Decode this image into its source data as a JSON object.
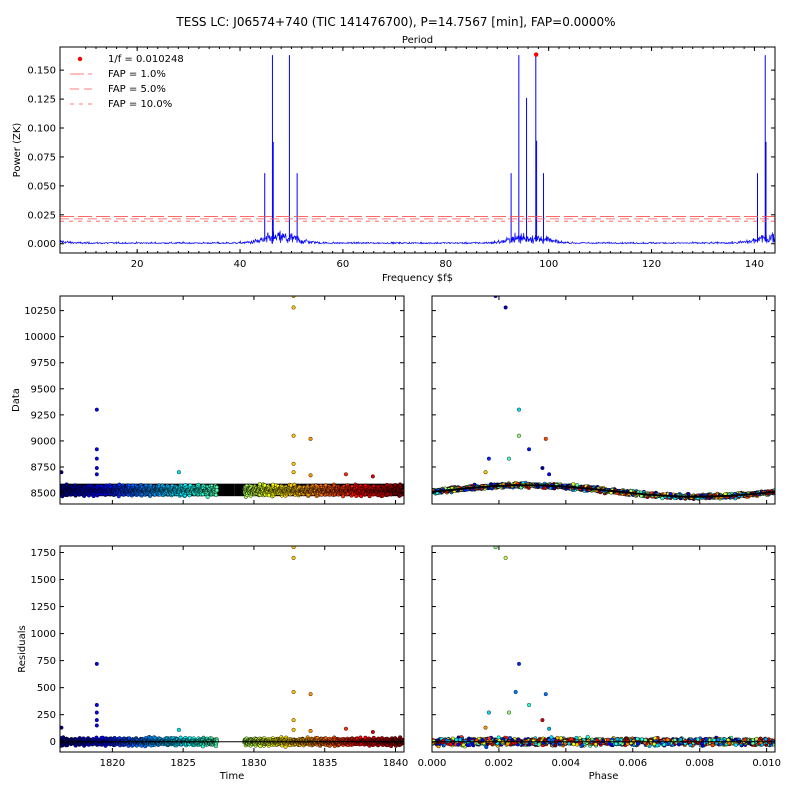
{
  "figure": {
    "title": "TESS LC: J06574+740 (TIC 141476700), P=14.7567 [min], FAP=0.0000%"
  },
  "chart_data": [
    {
      "id": "periodogram",
      "type": "line",
      "top_axis_label": "Period",
      "xlabel": "Frequency $f$",
      "ylabel": "Power (ZK)",
      "xlim": [
        5,
        144
      ],
      "ylim": [
        -0.008,
        0.17
      ],
      "xticks": [
        20,
        40,
        60,
        80,
        100,
        120,
        140
      ],
      "yticks": [
        0.0,
        0.025,
        0.05,
        0.075,
        0.1,
        0.125,
        0.15
      ],
      "line_color": "#0000ff",
      "peaks": [
        {
          "f": 44.8,
          "p": 0.061
        },
        {
          "f": 46.3,
          "p": 0.163
        },
        {
          "f": 46.45,
          "p": 0.088
        },
        {
          "f": 49.6,
          "p": 0.163
        },
        {
          "f": 51.1,
          "p": 0.061
        },
        {
          "f": 92.7,
          "p": 0.061
        },
        {
          "f": 94.2,
          "p": 0.163
        },
        {
          "f": 95.7,
          "p": 0.126
        },
        {
          "f": 97.5,
          "p": 0.163
        },
        {
          "f": 97.65,
          "p": 0.089
        },
        {
          "f": 99.0,
          "p": 0.061
        },
        {
          "f": 140.6,
          "p": 0.061
        },
        {
          "f": 142.1,
          "p": 0.163
        },
        {
          "f": 142.25,
          "p": 0.088
        }
      ],
      "best": {
        "f": 97.57,
        "p": 0.1635,
        "label": "1/f = 0.010248",
        "color": "#ff0000"
      },
      "fap_levels": [
        {
          "label": "FAP = 1.0%",
          "value": 0.0235,
          "dash": "14,4"
        },
        {
          "label": "FAP = 5.0%",
          "value": 0.0215,
          "dash": "9,5"
        },
        {
          "label": "FAP = 10.0%",
          "value": 0.0195,
          "dash": "4,5"
        }
      ],
      "fap_color": "#ff5050",
      "legend_position": "top-left"
    },
    {
      "id": "data-time",
      "type": "scatter",
      "ylabel": "Data",
      "xlim": [
        1816.3,
        1840.6
      ],
      "ylim": [
        8395,
        10390
      ],
      "xticks": [
        1820,
        1825,
        1830,
        1835,
        1840
      ],
      "yticks": [
        8500,
        8750,
        9000,
        9250,
        9500,
        9750,
        10000,
        10250
      ],
      "model_band": [
        8470,
        8590
      ],
      "gap": [
        1827.4,
        1829.3
      ],
      "outliers": [
        {
          "x": 1816.4,
          "y": 8700
        },
        {
          "x": 1818.9,
          "y": 9300
        },
        {
          "x": 1818.9,
          "y": 8920
        },
        {
          "x": 1818.9,
          "y": 8830
        },
        {
          "x": 1818.9,
          "y": 8740
        },
        {
          "x": 1818.9,
          "y": 8680
        },
        {
          "x": 1824.7,
          "y": 8700
        },
        {
          "x": 1832.8,
          "y": 10280
        },
        {
          "x": 1832.8,
          "y": 10390
        },
        {
          "x": 1832.8,
          "y": 9050
        },
        {
          "x": 1832.8,
          "y": 8780
        },
        {
          "x": 1832.8,
          "y": 8700
        },
        {
          "x": 1834.0,
          "y": 9020
        },
        {
          "x": 1834.0,
          "y": 8670
        },
        {
          "x": 1836.5,
          "y": 8680
        },
        {
          "x": 1838.4,
          "y": 8660
        }
      ]
    },
    {
      "id": "data-phase",
      "type": "scatter",
      "xlim": [
        0.0,
        0.01025
      ],
      "ylim": [
        8395,
        10390
      ],
      "model_mean": 8520,
      "model_amplitude": 55,
      "outliers": [
        {
          "x": 0.0019,
          "y": 10390
        },
        {
          "x": 0.0022,
          "y": 10280
        },
        {
          "x": 0.0026,
          "y": 9300
        },
        {
          "x": 0.0026,
          "y": 9050
        },
        {
          "x": 0.0034,
          "y": 9020
        },
        {
          "x": 0.0029,
          "y": 8920
        },
        {
          "x": 0.0023,
          "y": 8830
        },
        {
          "x": 0.0017,
          "y": 8830
        },
        {
          "x": 0.0033,
          "y": 8740
        },
        {
          "x": 0.0016,
          "y": 8700
        },
        {
          "x": 0.0035,
          "y": 8680
        }
      ]
    },
    {
      "id": "residuals-time",
      "type": "scatter",
      "xlabel": "Time",
      "ylabel": "Residuals",
      "xlim": [
        1816.3,
        1840.6
      ],
      "ylim": [
        -95,
        1810
      ],
      "xticks": [
        1820,
        1825,
        1830,
        1835,
        1840
      ],
      "yticks": [
        0,
        250,
        500,
        750,
        1000,
        1250,
        1500,
        1750
      ],
      "gap": [
        1827.4,
        1829.3
      ],
      "outliers": [
        {
          "x": 1816.4,
          "y": 130
        },
        {
          "x": 1818.9,
          "y": 720
        },
        {
          "x": 1818.9,
          "y": 340
        },
        {
          "x": 1818.9,
          "y": 270
        },
        {
          "x": 1818.9,
          "y": 200
        },
        {
          "x": 1818.9,
          "y": 150
        },
        {
          "x": 1824.7,
          "y": 110
        },
        {
          "x": 1832.8,
          "y": 1700
        },
        {
          "x": 1832.8,
          "y": 1800
        },
        {
          "x": 1832.8,
          "y": 460
        },
        {
          "x": 1832.8,
          "y": 200
        },
        {
          "x": 1832.8,
          "y": 110
        },
        {
          "x": 1834.0,
          "y": 440
        },
        {
          "x": 1834.0,
          "y": 100
        },
        {
          "x": 1836.5,
          "y": 120
        },
        {
          "x": 1838.4,
          "y": 90
        }
      ]
    },
    {
      "id": "residuals-phase",
      "type": "scatter",
      "xlabel": "Phase",
      "xlim": [
        0.0,
        0.01025
      ],
      "ylim": [
        -95,
        1810
      ],
      "xticks": [
        0.0,
        0.002,
        0.004,
        0.006,
        0.008,
        0.01
      ],
      "outliers": [
        {
          "x": 0.0019,
          "y": 1800
        },
        {
          "x": 0.0022,
          "y": 1700
        },
        {
          "x": 0.0026,
          "y": 720
        },
        {
          "x": 0.0029,
          "y": 340
        },
        {
          "x": 0.0017,
          "y": 270
        },
        {
          "x": 0.0023,
          "y": 270
        },
        {
          "x": 0.0025,
          "y": 460
        },
        {
          "x": 0.0034,
          "y": 440
        },
        {
          "x": 0.0033,
          "y": 200
        },
        {
          "x": 0.0035,
          "y": 120
        },
        {
          "x": 0.0016,
          "y": 130
        }
      ]
    }
  ]
}
